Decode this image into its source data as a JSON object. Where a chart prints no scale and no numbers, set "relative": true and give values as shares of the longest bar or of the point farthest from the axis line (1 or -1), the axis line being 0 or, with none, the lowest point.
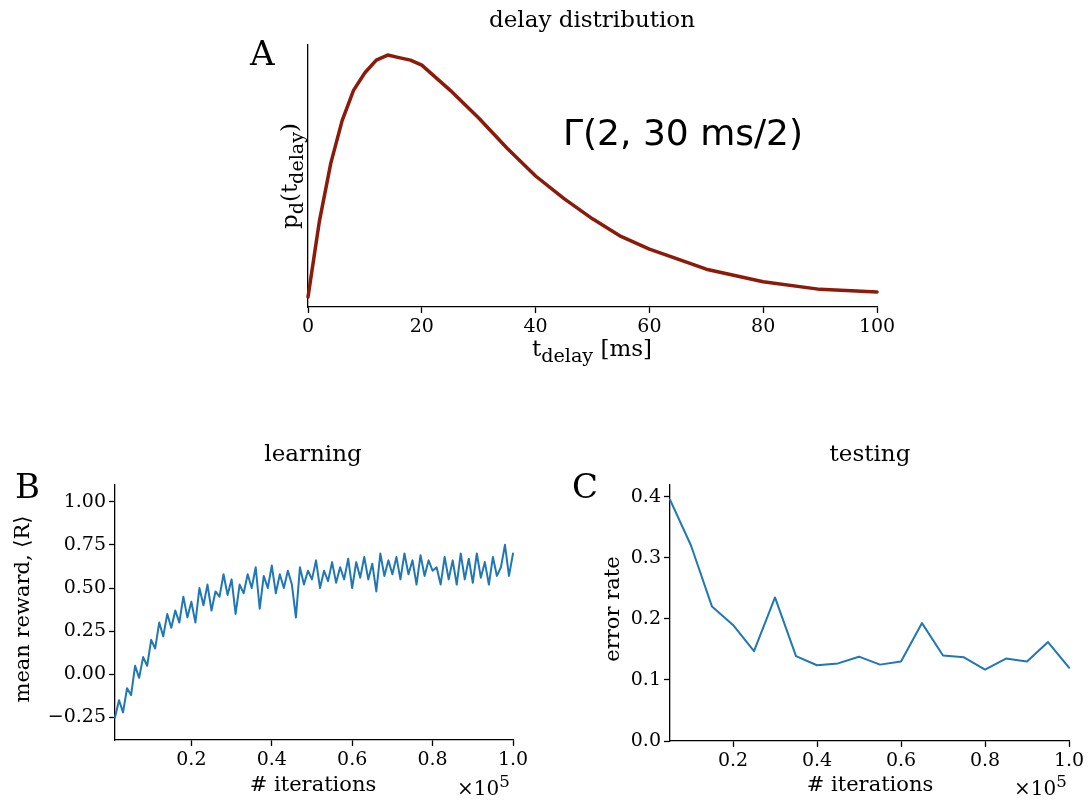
{
  "chart_data": [
    {
      "type": "line",
      "title": "delay distribution",
      "xlabel": "t$_{delay}$ [ms]",
      "ylabel": "p$_{d}$(t$_{delay}$)",
      "relative": true,
      "annotations": [
        "A",
        "Γ(2, 30 ms/2)"
      ],
      "x": [
        0,
        2,
        4,
        6,
        8,
        10,
        12,
        14,
        16,
        18,
        20,
        25,
        30,
        35,
        40,
        45,
        50,
        55,
        60,
        70,
        80,
        90,
        100
      ],
      "series": [
        {
          "color": "#8c1a0a",
          "values": [
            0.04,
            0.34,
            0.57,
            0.74,
            0.86,
            0.93,
            0.98,
            1,
            0.99,
            0.98,
            0.96,
            0.86,
            0.75,
            0.63,
            0.52,
            0.43,
            0.35,
            0.28,
            0.23,
            0.15,
            0.1,
            0.07,
            0.06
          ]
        }
      ],
      "xlim": [
        0,
        100
      ],
      "xticks": [
        0,
        20,
        40,
        60,
        80,
        100
      ],
      "grid": false,
      "legend": false,
      "marker": "none",
      "line_style": "solid"
    },
    {
      "type": "line",
      "title": "learning",
      "xlabel": "# iterations",
      "ylabel": "mean reward, ⟨R⟩",
      "annotations": [
        "B",
        "×10$^{5}$"
      ],
      "x": [
        0.01,
        0.02,
        0.03,
        0.04,
        0.05,
        0.06,
        0.07,
        0.08,
        0.09,
        0.1,
        0.11,
        0.12,
        0.13,
        0.14,
        0.15,
        0.16,
        0.17,
        0.18,
        0.19,
        0.2,
        0.21,
        0.22,
        0.23,
        0.24,
        0.25,
        0.26,
        0.27,
        0.28,
        0.29,
        0.3,
        0.31,
        0.32,
        0.33,
        0.34,
        0.35,
        0.36,
        0.37,
        0.38,
        0.39,
        0.4,
        0.41,
        0.42,
        0.43,
        0.44,
        0.45,
        0.46,
        0.47,
        0.48,
        0.49,
        0.5,
        0.51,
        0.52,
        0.53,
        0.54,
        0.55,
        0.56,
        0.57,
        0.58,
        0.59,
        0.6,
        0.61,
        0.62,
        0.63,
        0.64,
        0.65,
        0.66,
        0.67,
        0.68,
        0.69,
        0.7,
        0.71,
        0.72,
        0.73,
        0.74,
        0.75,
        0.76,
        0.77,
        0.78,
        0.79,
        0.8,
        0.81,
        0.82,
        0.83,
        0.84,
        0.85,
        0.86,
        0.87,
        0.88,
        0.89,
        0.9,
        0.91,
        0.92,
        0.93,
        0.94,
        0.95,
        0.96,
        0.97,
        0.98,
        0.99,
        1.0
      ],
      "series": [
        {
          "color": "#1f77b4",
          "values": [
            -0.25,
            -0.15,
            -0.22,
            -0.08,
            -0.12,
            0.05,
            -0.02,
            0.1,
            0.05,
            0.2,
            0.15,
            0.3,
            0.22,
            0.35,
            0.27,
            0.37,
            0.3,
            0.45,
            0.33,
            0.42,
            0.3,
            0.5,
            0.4,
            0.52,
            0.37,
            0.48,
            0.45,
            0.58,
            0.46,
            0.55,
            0.35,
            0.52,
            0.47,
            0.58,
            0.5,
            0.62,
            0.38,
            0.57,
            0.5,
            0.63,
            0.47,
            0.58,
            0.5,
            0.6,
            0.52,
            0.33,
            0.62,
            0.52,
            0.6,
            0.55,
            0.66,
            0.5,
            0.6,
            0.54,
            0.65,
            0.53,
            0.62,
            0.55,
            0.67,
            0.5,
            0.65,
            0.56,
            0.68,
            0.55,
            0.64,
            0.48,
            0.7,
            0.57,
            0.66,
            0.58,
            0.68,
            0.55,
            0.7,
            0.58,
            0.66,
            0.52,
            0.69,
            0.57,
            0.66,
            0.6,
            0.62,
            0.52,
            0.68,
            0.55,
            0.66,
            0.52,
            0.7,
            0.55,
            0.67,
            0.53,
            0.7,
            0.56,
            0.65,
            0.52,
            0.68,
            0.57,
            0.62,
            0.75,
            0.57,
            0.7
          ]
        }
      ],
      "xlim": [
        0.01,
        1.0
      ],
      "xticks": [
        0.2,
        0.4,
        0.6,
        0.8,
        {
          "value": 1,
          "label": "1.0"
        }
      ],
      "ylim": [
        -0.38,
        1.1
      ],
      "yticks": [
        {
          "value": -0.25,
          "label": "−0.25"
        },
        {
          "value": 0,
          "label": "0.00"
        },
        {
          "value": 0.25,
          "label": "0.25"
        },
        {
          "value": 0.5,
          "label": "0.50"
        },
        {
          "value": 0.75,
          "label": "0.75"
        },
        {
          "value": 1,
          "label": "1.00"
        }
      ],
      "grid": false,
      "legend": false,
      "marker": "none",
      "line_style": "solid"
    },
    {
      "type": "line",
      "title": "testing",
      "xlabel": "# iterations",
      "ylabel": "error rate",
      "annotations": [
        "C",
        "×10$^{5}$"
      ],
      "x": [
        0.05,
        0.1,
        0.15,
        0.2,
        0.25,
        0.3,
        0.35,
        0.4,
        0.45,
        0.5,
        0.55,
        0.6,
        0.65,
        0.7,
        0.75,
        0.8,
        0.85,
        0.9,
        0.95,
        1.0
      ],
      "series": [
        {
          "color": "#1f77b4",
          "values": [
            0.395,
            0.32,
            0.22,
            0.19,
            0.147,
            0.235,
            0.139,
            0.124,
            0.127,
            0.138,
            0.125,
            0.13,
            0.193,
            0.14,
            0.137,
            0.117,
            0.135,
            0.13,
            0.162,
            0.12
          ]
        }
      ],
      "xlim": [
        0.05,
        1.0
      ],
      "xticks": [
        0.2,
        0.4,
        0.6,
        0.8,
        {
          "value": 1,
          "label": "1.0"
        }
      ],
      "ylim": [
        0,
        0.42
      ],
      "yticks": [
        {
          "value": 0,
          "label": "0.0"
        },
        0.1,
        0.2,
        0.3,
        0.4
      ],
      "grid": false,
      "legend": false,
      "marker": "none",
      "line_style": "solid"
    }
  ]
}
